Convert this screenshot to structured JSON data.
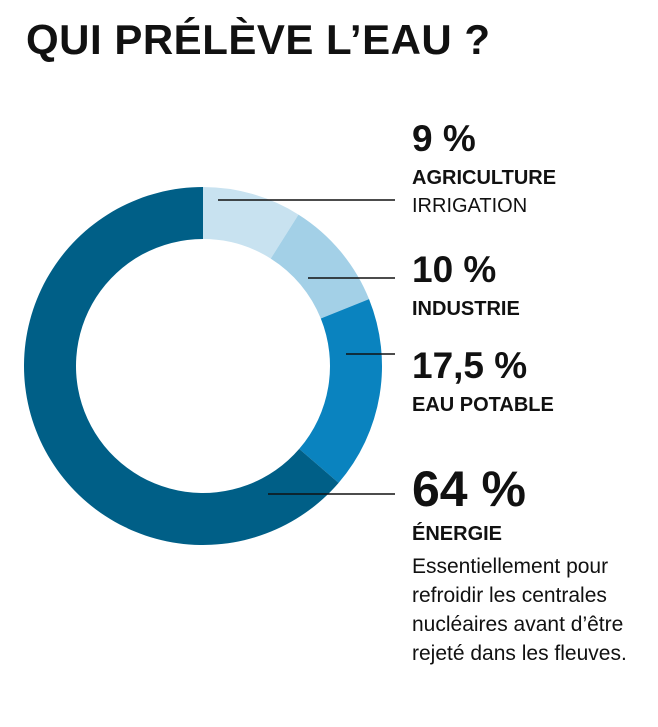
{
  "title": "QUI PRÉLÈVE L’EAU ?",
  "chart_data": {
    "type": "pie",
    "donut": true,
    "title": "QUI PRÉLÈVE L’EAU ?",
    "slices": [
      {
        "percent_label": "9 %",
        "value": 9,
        "category": "AGRICULTURE",
        "sublabel": "IRRIGATION",
        "color": "#c8e2f0"
      },
      {
        "percent_label": "10 %",
        "value": 10,
        "category": "INDUSTRIE",
        "color": "#a3d0e7"
      },
      {
        "percent_label": "17,5 %",
        "value": 17.5,
        "category": "EAU POTABLE",
        "color": "#0a83bf"
      },
      {
        "percent_label": "64 %",
        "value": 64,
        "category": "ÉNERGIE",
        "description": "Essentiellement pour refroidir les centrales nucléaires avant d’être rejeté dans les fleuves.",
        "color": "#005f87"
      }
    ]
  }
}
